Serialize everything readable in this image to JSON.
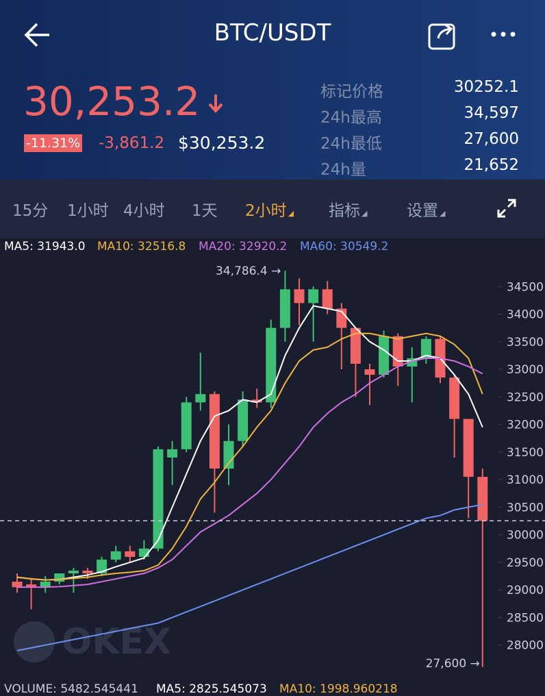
{
  "header": {
    "title": "BTC/USDT"
  },
  "price": {
    "last": "30,253.2",
    "change_pct": "-11.31%",
    "change": "-3,861.2",
    "usd": "$30,253.2"
  },
  "stats": [
    [
      "标记价格",
      "30252.1"
    ],
    [
      "24h最高",
      "34,597"
    ],
    [
      "24h最低",
      "27,600"
    ],
    [
      "24h量",
      "21,652"
    ]
  ],
  "tabs": [
    "15分",
    "1小时",
    "4小时",
    "1天",
    "2小时",
    "指标",
    "设置"
  ],
  "volume_legend": [
    "VOLUME: 5482.545441",
    "MA5: 2825.545073",
    "MA10: 1998.960218"
  ],
  "watermark": "OKEX",
  "chart_data": {
    "type": "candlestick",
    "ylim": [
      27400,
      35000
    ],
    "yticks": [
      28000,
      28500,
      29000,
      29500,
      30000,
      30500,
      31000,
      31500,
      32000,
      32500,
      33000,
      33500,
      34000,
      34500
    ],
    "up_color": "#3fbf76",
    "down_color": "#ef6464",
    "current_price": 30253.2,
    "open": [
      29150,
      29100,
      29050,
      29150,
      29300,
      29350,
      29300,
      29550,
      29700,
      29600,
      29750,
      31400,
      31550,
      32400,
      32550,
      31200,
      31700,
      32450,
      32400,
      33750,
      34450,
      34200,
      34450,
      34100,
      33750,
      33000,
      32900,
      33600,
      33050,
      33200,
      33550,
      32850,
      32100,
      31050
    ],
    "high": [
      29300,
      29200,
      29250,
      29300,
      29400,
      29400,
      29600,
      29800,
      29800,
      29900,
      31600,
      31700,
      32500,
      33300,
      32600,
      32000,
      32600,
      32650,
      33900,
      34786.4,
      34650,
      34500,
      34600,
      34200,
      33750,
      33100,
      33700,
      33650,
      33400,
      33600,
      33600,
      32900,
      32100,
      31200
    ],
    "low": [
      28950,
      28650,
      28950,
      29100,
      28950,
      29200,
      29250,
      29500,
      29500,
      29550,
      29700,
      30900,
      31500,
      32250,
      30400,
      30900,
      31600,
      32300,
      32300,
      33500,
      33800,
      33500,
      34000,
      33000,
      32500,
      32350,
      32850,
      32700,
      32400,
      33100,
      32750,
      31400,
      30300,
      27600
    ],
    "close": [
      29050,
      29050,
      29150,
      29300,
      29350,
      29300,
      29550,
      29700,
      29600,
      29750,
      31550,
      31550,
      32400,
      32550,
      31200,
      31700,
      32450,
      32400,
      33750,
      34450,
      34200,
      34450,
      34100,
      33750,
      33100,
      32900,
      33600,
      33050,
      33200,
      33550,
      32850,
      32100,
      31050,
      30253.2
    ],
    "series": [
      {
        "name": "MA5: 31943.0",
        "color": "#ffffff",
        "values": [
          29230,
          29200,
          29180,
          29190,
          29230,
          29270,
          29330,
          29420,
          29500,
          29580,
          29900,
          30500,
          31100,
          31700,
          32150,
          32250,
          32450,
          32400,
          32550,
          33250,
          33750,
          34150,
          34100,
          34050,
          33750,
          33500,
          33350,
          33150,
          33150,
          33250,
          33200,
          32900,
          32550,
          31950
        ]
      },
      {
        "name": "MA10: 32516.8",
        "color": "#f0b43c",
        "values": [
          29230,
          29200,
          29180,
          29190,
          29210,
          29230,
          29270,
          29300,
          29320,
          29350,
          29450,
          29750,
          30150,
          30650,
          30950,
          31300,
          31600,
          31950,
          32250,
          32750,
          33150,
          33350,
          33400,
          33550,
          33650,
          33650,
          33600,
          33550,
          33600,
          33650,
          33600,
          33450,
          33200,
          32550
        ]
      },
      {
        "name": "MA20: 32920.2",
        "color": "#d070e0",
        "values": [
          29050,
          29050,
          29050,
          29060,
          29080,
          29100,
          29150,
          29200,
          29250,
          29300,
          29400,
          29550,
          29800,
          30050,
          30200,
          30350,
          30550,
          30750,
          31000,
          31300,
          31600,
          31950,
          32200,
          32400,
          32550,
          32750,
          32900,
          33050,
          33150,
          33200,
          33200,
          33150,
          33050,
          32920
        ]
      },
      {
        "name": "MA60: 30549.2",
        "color": "#6c8ff0",
        "values": [
          27900,
          27950,
          28000,
          28050,
          28100,
          28150,
          28200,
          28250,
          28300,
          28350,
          28400,
          28500,
          28600,
          28700,
          28800,
          28900,
          29000,
          29100,
          29200,
          29300,
          29400,
          29500,
          29600,
          29700,
          29800,
          29900,
          30000,
          30100,
          30200,
          30300,
          30350,
          30450,
          30500,
          30549
        ]
      }
    ],
    "annotations": [
      "34,786.4 →",
      "27,600 →"
    ]
  }
}
